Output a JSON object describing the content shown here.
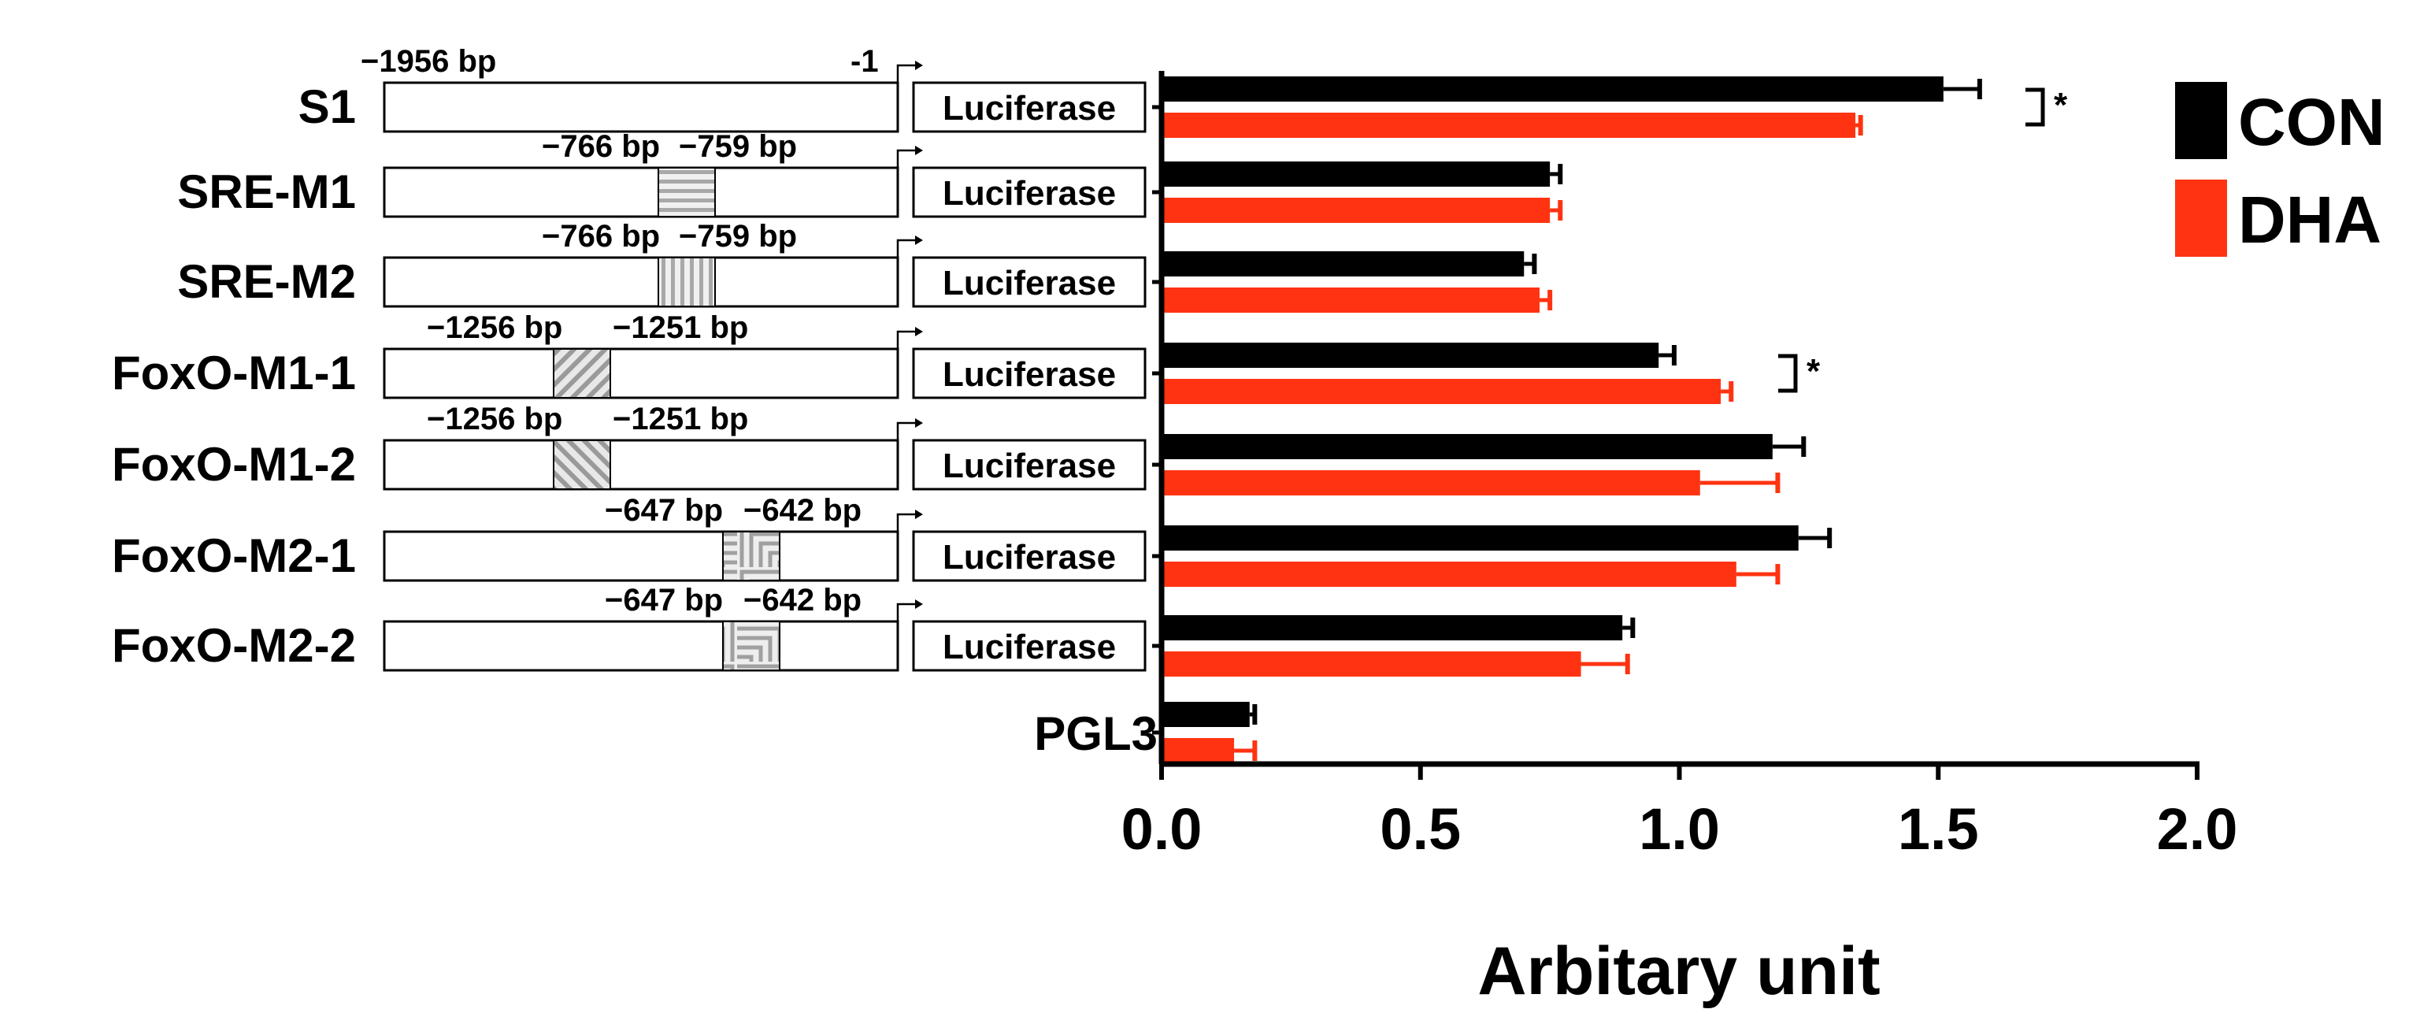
{
  "chart_data": {
    "type": "bar",
    "orientation": "horizontal",
    "title": "",
    "xlabel": "Arbitary unit",
    "ylabel": "",
    "xlim": [
      0.0,
      2.0
    ],
    "xticks": [
      "0.0",
      "0.5",
      "1.0",
      "1.5",
      "2.0"
    ],
    "xtick_values": [
      0.0,
      0.5,
      1.0,
      1.5,
      2.0
    ],
    "grid": false,
    "legend_position": "top-right",
    "categories": [
      "S1",
      "SRE-M1",
      "SRE-M2",
      "FoxO-M1-1",
      "FoxO-M1-2",
      "FoxO-M2-1",
      "FoxO-M2-2",
      "PGL3"
    ],
    "series": [
      {
        "name": "CON",
        "color": "#000000",
        "values": [
          1.51,
          0.75,
          0.7,
          0.96,
          1.18,
          1.23,
          0.89,
          0.17
        ],
        "errors": [
          0.07,
          0.02,
          0.02,
          0.03,
          0.06,
          0.06,
          0.02,
          0.01
        ]
      },
      {
        "name": "DHA",
        "color": "#ff3311",
        "values": [
          1.34,
          0.75,
          0.73,
          1.08,
          1.04,
          1.11,
          0.81,
          0.14
        ],
        "errors": [
          0.01,
          0.02,
          0.02,
          0.02,
          0.15,
          0.08,
          0.09,
          0.04
        ]
      }
    ],
    "significance": [
      {
        "category": "S1",
        "mark": "*"
      },
      {
        "category": "FoxO-M1-1",
        "mark": "*"
      }
    ]
  },
  "constructs": [
    {
      "label": "S1",
      "type": "wt",
      "bp_left": "−1956 bp",
      "bp_right": "-1",
      "reporter": "Luciferase"
    },
    {
      "label": "SRE-M1",
      "type": "sre-h",
      "bp_left": "−766 bp",
      "bp_right": "−759 bp",
      "reporter": "Luciferase"
    },
    {
      "label": "SRE-M2",
      "type": "sre-v",
      "bp_left": "−766 bp",
      "bp_right": "−759 bp",
      "reporter": "Luciferase"
    },
    {
      "label": "FoxO-M1-1",
      "type": "foxo1-a",
      "bp_left": "−1256 bp",
      "bp_right": "−1251 bp",
      "reporter": "Luciferase"
    },
    {
      "label": "FoxO-M1-2",
      "type": "foxo1-b",
      "bp_left": "−1256 bp",
      "bp_right": "−1251 bp",
      "reporter": "Luciferase"
    },
    {
      "label": "FoxO-M2-1",
      "type": "foxo2-a",
      "bp_left": "−647 bp",
      "bp_right": "−642 bp",
      "reporter": "Luciferase"
    },
    {
      "label": "FoxO-M2-2",
      "type": "foxo2-b",
      "bp_left": "−647 bp",
      "bp_right": "−642 bp",
      "reporter": "Luciferase"
    }
  ]
}
